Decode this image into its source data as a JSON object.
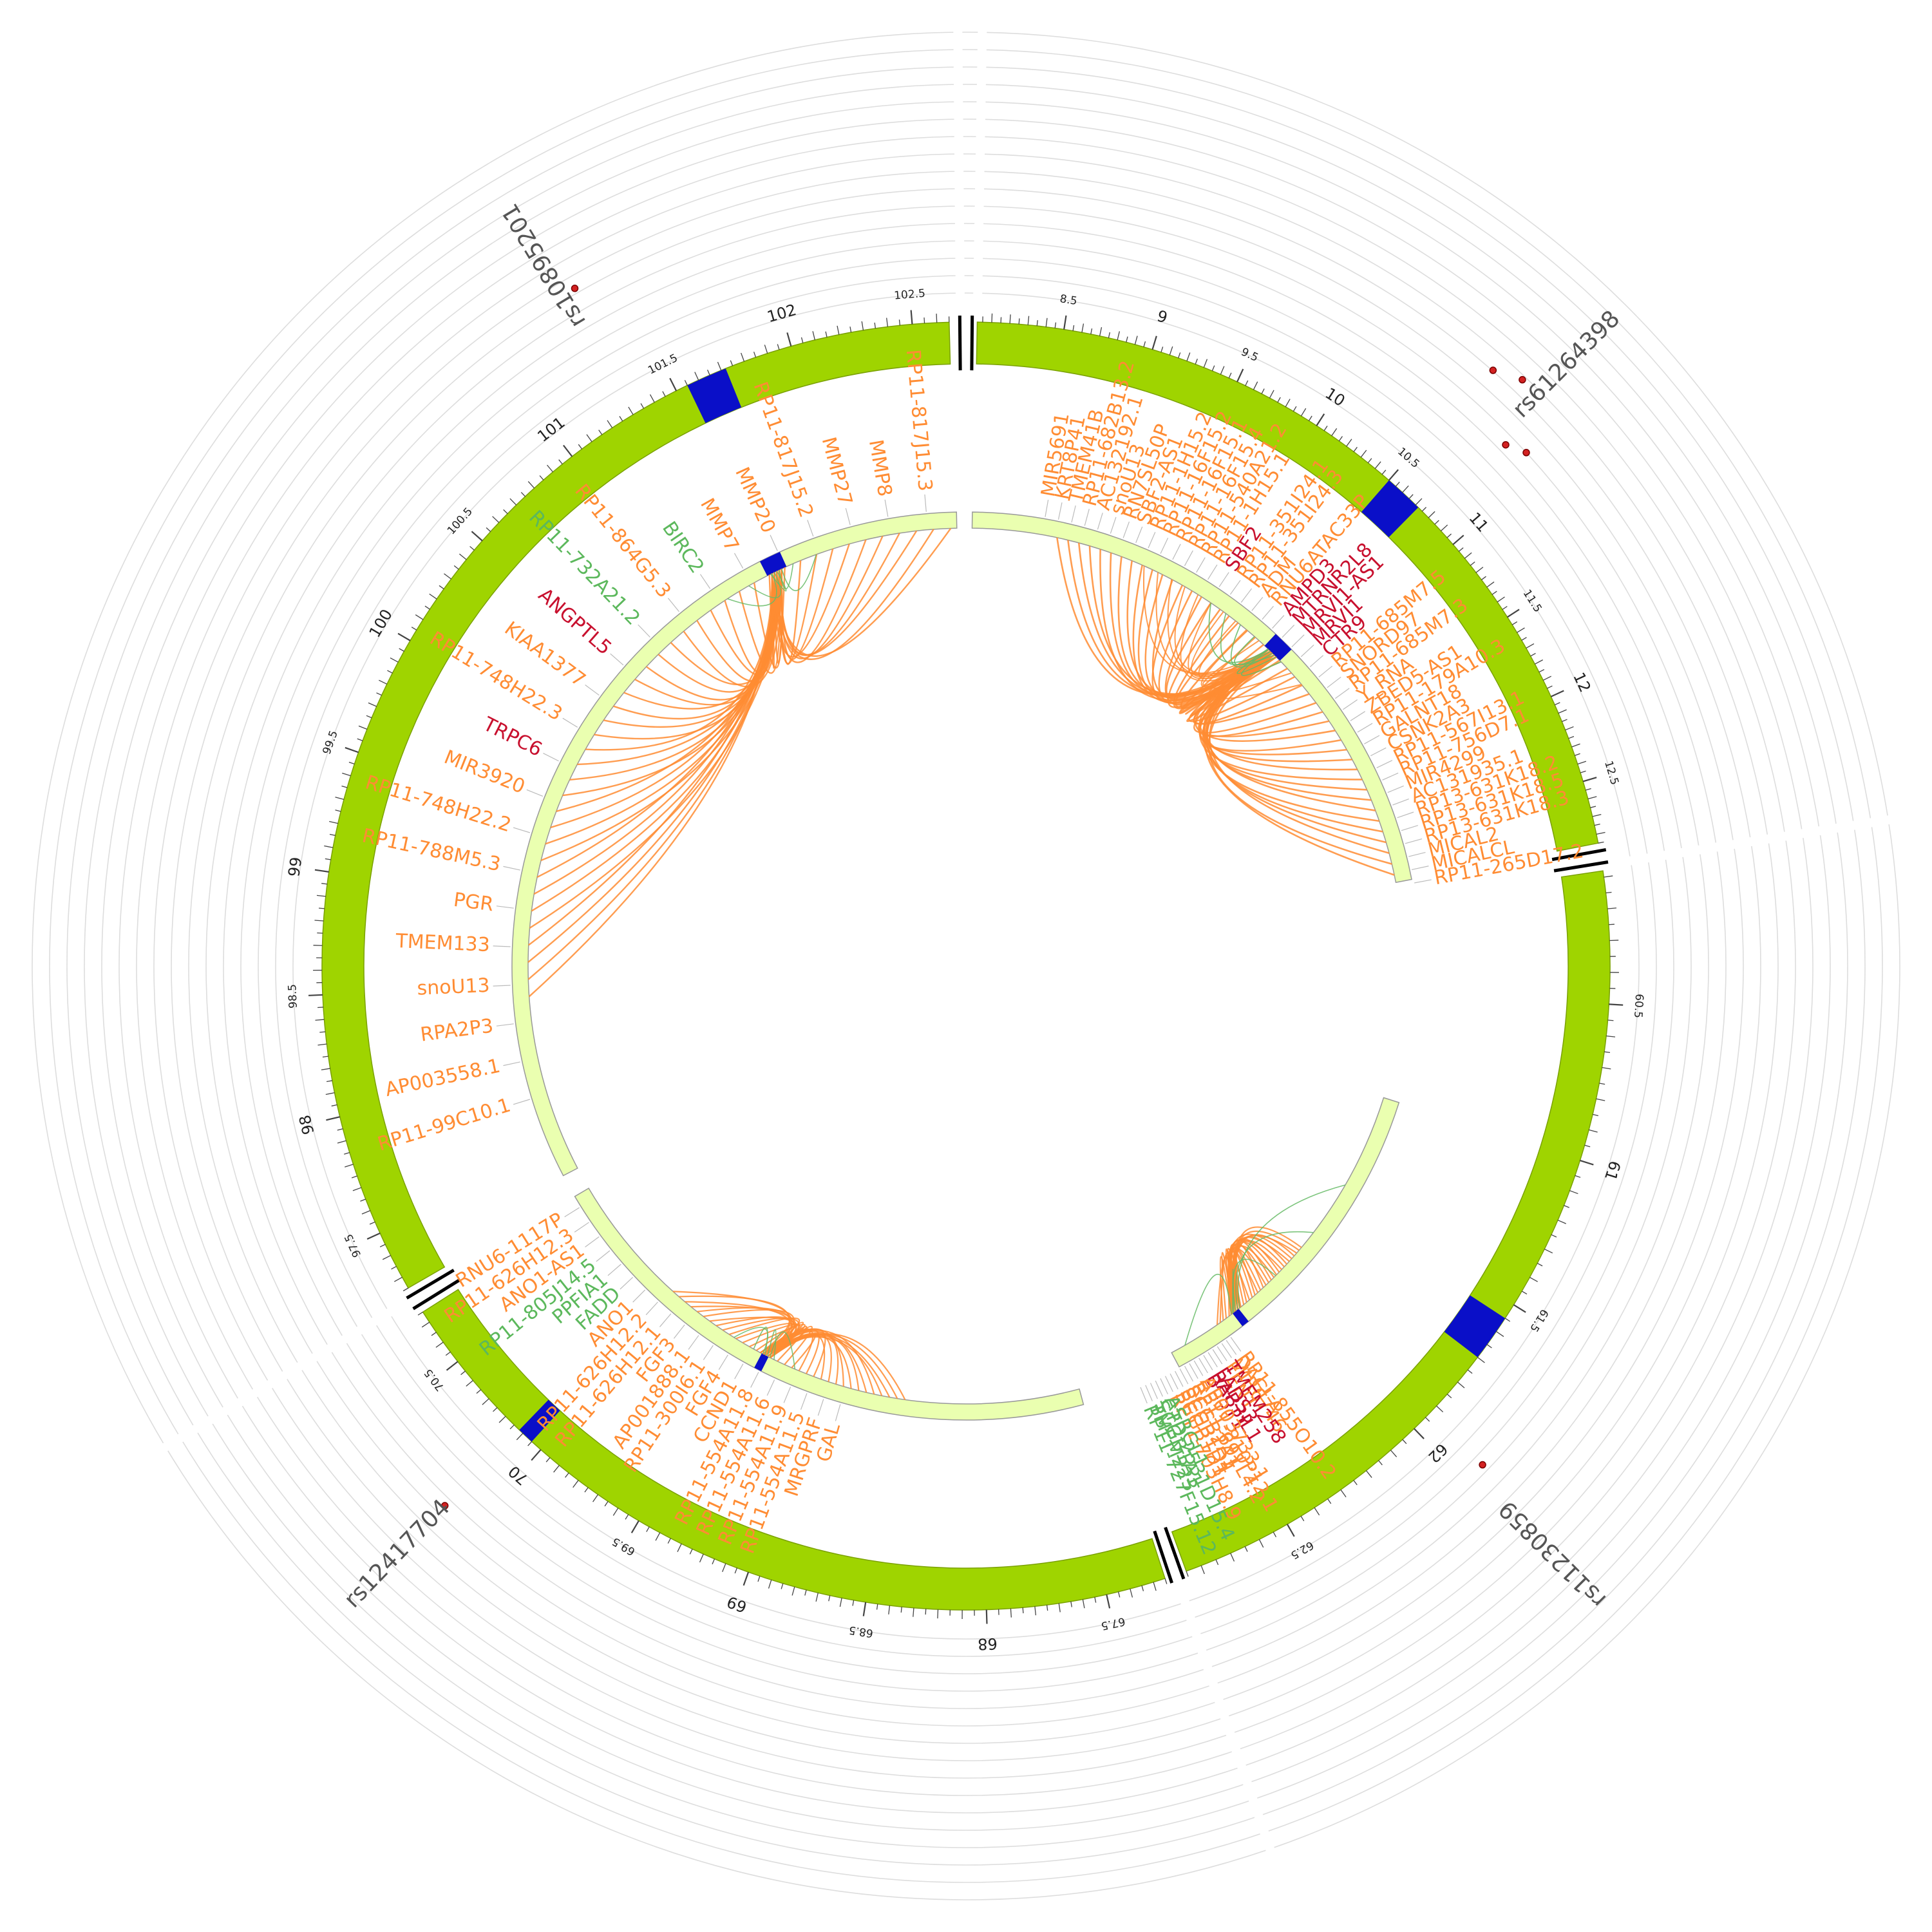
{
  "colors": {
    "outer_band": "#9fd400",
    "inner_band": "#eaffb0",
    "highlight": "#0a0fc8",
    "interaction": "#ff8c33",
    "cis": "#66bb66",
    "gene_orange": "#ff8c33",
    "gene_green": "#5cb85c",
    "gene_red": "#c8102e",
    "ring_grid": "#dddddd",
    "snp_point": "#d32222"
  },
  "segments": [
    {
      "id": "chr1",
      "ticks": [
        "8.5",
        "9",
        "9.5",
        "10",
        "10.5",
        "11",
        "11.5",
        "12",
        "12.5"
      ],
      "major": [
        "9",
        "10",
        "11",
        "12"
      ]
    },
    {
      "id": "chr11a",
      "ticks": [
        "60.5",
        "61",
        "61.5",
        "62",
        "62.5"
      ],
      "major": [
        "61",
        "62"
      ]
    },
    {
      "id": "chr11b",
      "ticks": [
        "67.5",
        "68",
        "68.5",
        "69",
        "69.5",
        "70",
        "70.5"
      ],
      "major": [
        "68",
        "69",
        "70"
      ]
    },
    {
      "id": "chr11c",
      "ticks": [
        "97.5",
        "98",
        "98.5",
        "99",
        "99.5",
        "100",
        "100.5",
        "101",
        "101.5",
        "102",
        "102.5"
      ],
      "major": [
        "98",
        "99",
        "100",
        "101",
        "102"
      ]
    }
  ],
  "snps": [
    {
      "id": "rs61264398"
    },
    {
      "id": "rs11230859"
    },
    {
      "id": "rs12417704"
    },
    {
      "id": "rs10895201"
    }
  ],
  "genes": {
    "chr1": [
      {
        "name": "MIR5691",
        "c": "orange"
      },
      {
        "name": "KRT8P41",
        "c": "orange"
      },
      {
        "name": "TMEM41B",
        "c": "orange"
      },
      {
        "name": "RP11-682B13.2",
        "c": "orange"
      },
      {
        "name": "AC132192.1",
        "c": "orange"
      },
      {
        "name": "snoU13",
        "c": "orange"
      },
      {
        "name": "RN7SL50P",
        "c": "orange"
      },
      {
        "name": "SBF2-AS1",
        "c": "orange"
      },
      {
        "name": "RP11-1H15.2",
        "c": "orange"
      },
      {
        "name": "RP11-16F15.2",
        "c": "orange"
      },
      {
        "name": "RP11-16F15.1",
        "c": "orange"
      },
      {
        "name": "RP11-16F15.4",
        "c": "orange"
      },
      {
        "name": "RP11-540A21.2",
        "c": "orange"
      },
      {
        "name": "RP11-1H15.1",
        "c": "orange"
      },
      {
        "name": "SBF2",
        "c": "red"
      },
      {
        "name": "RP11-351I24.1",
        "c": "orange"
      },
      {
        "name": "RP11-351I24.3",
        "c": "orange"
      },
      {
        "name": "ADM",
        "c": "orange"
      },
      {
        "name": "RNU6ATAC33P",
        "c": "orange"
      },
      {
        "name": "AMPD3",
        "c": "red"
      },
      {
        "name": "MTRNR2L8",
        "c": "red"
      },
      {
        "name": "MRVI1-AS1",
        "c": "red"
      },
      {
        "name": "MRVI1",
        "c": "red"
      },
      {
        "name": "CTR9",
        "c": "red"
      },
      {
        "name": "RP11-685M7.5",
        "c": "orange"
      },
      {
        "name": "SNORD97",
        "c": "orange"
      },
      {
        "name": "RP11-685M7.3",
        "c": "orange"
      },
      {
        "name": "Y_RNA",
        "c": "orange"
      },
      {
        "name": "ZBED5-AS1",
        "c": "orange"
      },
      {
        "name": "RP11-179A10.3",
        "c": "orange"
      },
      {
        "name": "GALNT18",
        "c": "orange"
      },
      {
        "name": "CSNK2A3",
        "c": "orange"
      },
      {
        "name": "RP11-567I13.1",
        "c": "orange"
      },
      {
        "name": "RP11-756D7.1",
        "c": "orange"
      },
      {
        "name": "MIR4299",
        "c": "orange"
      },
      {
        "name": "AC131935.1",
        "c": "orange"
      },
      {
        "name": "RP13-631K18.2",
        "c": "orange"
      },
      {
        "name": "RP13-631K18.5",
        "c": "orange"
      },
      {
        "name": "RP13-631K18.3",
        "c": "orange"
      },
      {
        "name": "MICAL2",
        "c": "orange"
      },
      {
        "name": "MICALCL",
        "c": "orange"
      },
      {
        "name": "RP11-265D17.2",
        "c": "orange"
      }
    ],
    "chr11a": [
      {
        "name": "RP11-855O10.2",
        "c": "orange"
      },
      {
        "name": "DAGLA",
        "c": "orange"
      },
      {
        "name": "MIR6746",
        "c": "orange"
      },
      {
        "name": "TMEM258",
        "c": "red"
      },
      {
        "name": "FEN1",
        "c": "orange"
      },
      {
        "name": "FADS3",
        "c": "red"
      },
      {
        "name": "RAB3IL1",
        "c": "red"
      },
      {
        "name": "BEST1",
        "c": "red"
      },
      {
        "name": "AP003733.1",
        "c": "orange"
      },
      {
        "name": "RP11-810P12.1",
        "c": "orange"
      },
      {
        "name": "RP11-691L4.2",
        "c": "orange"
      },
      {
        "name": "SCGB2A1",
        "c": "orange"
      },
      {
        "name": "SCGB1D4",
        "c": "orange"
      },
      {
        "name": "SCGB1D1",
        "c": "orange"
      },
      {
        "name": "RP11-703H8.9",
        "c": "orange"
      },
      {
        "name": "ASRGL1",
        "c": "green"
      },
      {
        "name": "CTD-2531D15.4",
        "c": "green"
      },
      {
        "name": "SCGB1A1",
        "c": "green"
      },
      {
        "name": "TMEM223",
        "c": "green"
      },
      {
        "name": "RP11-727F15.12",
        "c": "green"
      }
    ],
    "chr11b": [
      {
        "name": "GAL",
        "c": "orange"
      },
      {
        "name": "MRGPRF",
        "c": "orange"
      },
      {
        "name": "RP11-554A11.5",
        "c": "orange"
      },
      {
        "name": "RP11-554A11.9",
        "c": "orange"
      },
      {
        "name": "RP11-554A11.6",
        "c": "orange"
      },
      {
        "name": "RP11-554A11.8",
        "c": "orange"
      },
      {
        "name": "CCND1",
        "c": "orange"
      },
      {
        "name": "FGF4",
        "c": "orange"
      },
      {
        "name": "RP11-300I6.1",
        "c": "orange"
      },
      {
        "name": "AP001888.1",
        "c": "orange"
      },
      {
        "name": "FGF3",
        "c": "orange"
      },
      {
        "name": "RP11-626H12.1",
        "c": "orange"
      },
      {
        "name": "RP11-626H12.2",
        "c": "orange"
      },
      {
        "name": "ANO1",
        "c": "orange"
      },
      {
        "name": "FADD",
        "c": "green"
      },
      {
        "name": "PPFIA1",
        "c": "green"
      },
      {
        "name": "RP11-805J14.5",
        "c": "green"
      },
      {
        "name": "ANO1-AS1",
        "c": "orange"
      },
      {
        "name": "RP11-626H12.3",
        "c": "orange"
      },
      {
        "name": "RNU6-1117P",
        "c": "orange"
      }
    ],
    "chr11c": [
      {
        "name": "RP11-99C10.1",
        "c": "orange"
      },
      {
        "name": "AP003558.1",
        "c": "orange"
      },
      {
        "name": "RPA2P3",
        "c": "orange"
      },
      {
        "name": "snoU13",
        "c": "orange"
      },
      {
        "name": "TMEM133",
        "c": "orange"
      },
      {
        "name": "PGR",
        "c": "orange"
      },
      {
        "name": "RP11-788M5.3",
        "c": "orange"
      },
      {
        "name": "RP11-748H22.2",
        "c": "orange"
      },
      {
        "name": "MIR3920",
        "c": "orange"
      },
      {
        "name": "TRPC6",
        "c": "red"
      },
      {
        "name": "RP11-748H22.3",
        "c": "orange"
      },
      {
        "name": "KIAA1377",
        "c": "orange"
      },
      {
        "name": "ANGPTL5",
        "c": "red"
      },
      {
        "name": "RP11-732A21.2",
        "c": "green"
      },
      {
        "name": "RP11-864G5.3",
        "c": "orange"
      },
      {
        "name": "BIRC2",
        "c": "green"
      },
      {
        "name": "MMP7",
        "c": "orange"
      },
      {
        "name": "MMP20",
        "c": "orange"
      },
      {
        "name": "RP11-817J15.2",
        "c": "orange"
      },
      {
        "name": "MMP27",
        "c": "orange"
      },
      {
        "name": "MMP8",
        "c": "orange"
      },
      {
        "name": "RP11-817J15.3",
        "c": "orange"
      }
    ]
  }
}
